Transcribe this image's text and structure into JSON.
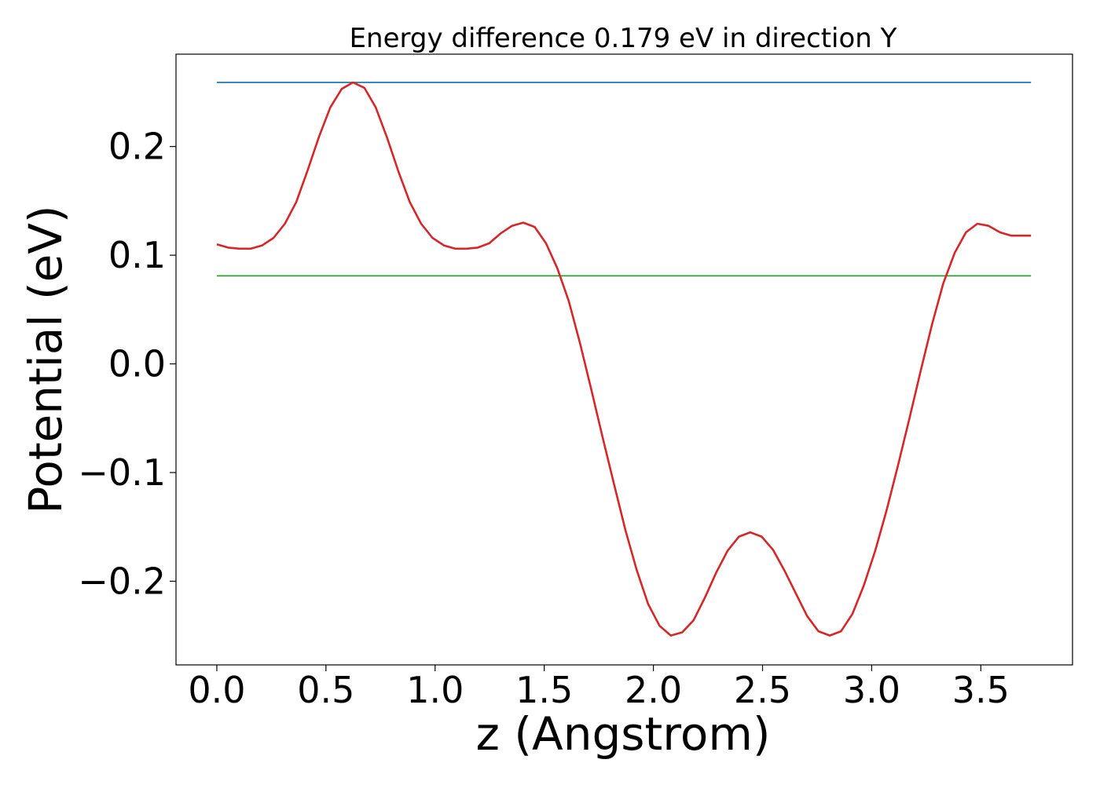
{
  "chart_data": {
    "type": "line",
    "title": "Energy difference 0.179 eV in direction Y",
    "xlabel": "z (Angstrom)",
    "ylabel": "Potential (eV)",
    "xlim": [
      -0.187,
      3.92
    ],
    "ylim": [
      -0.277,
      0.285
    ],
    "x_ticks": [
      0.0,
      0.5,
      1.0,
      1.5,
      2.0,
      2.5,
      3.0,
      3.5
    ],
    "x_tick_labels": [
      "0.0",
      "0.5",
      "1.0",
      "1.5",
      "2.0",
      "2.5",
      "3.0",
      "3.5"
    ],
    "y_ticks": [
      -0.2,
      -0.1,
      0.0,
      0.1,
      0.2
    ],
    "y_tick_labels": [
      "−0.2",
      "−0.1",
      "0.0",
      "0.1",
      "0.2"
    ],
    "grid": false,
    "series": [
      {
        "color": "#1f77b4",
        "x": [
          0.0,
          3.73
        ],
        "y": [
          0.259,
          0.259
        ]
      },
      {
        "color": "#2ca02c",
        "x": [
          0.0,
          3.73
        ],
        "y": [
          0.081,
          0.081
        ]
      },
      {
        "color": "#d62728",
        "x": [
          0.0,
          0.052,
          0.104,
          0.156,
          0.208,
          0.26,
          0.312,
          0.364,
          0.416,
          0.468,
          0.52,
          0.572,
          0.624,
          0.676,
          0.728,
          0.78,
          0.832,
          0.884,
          0.936,
          0.988,
          1.04,
          1.092,
          1.144,
          1.196,
          1.248,
          1.3,
          1.352,
          1.404,
          1.456,
          1.508,
          1.56,
          1.612,
          1.664,
          1.716,
          1.768,
          1.82,
          1.872,
          1.924,
          1.976,
          2.028,
          2.08,
          2.132,
          2.184,
          2.236,
          2.288,
          2.34,
          2.392,
          2.444,
          2.496,
          2.548,
          2.6,
          2.652,
          2.704,
          2.756,
          2.808,
          2.86,
          2.912,
          2.964,
          3.016,
          3.068,
          3.12,
          3.172,
          3.224,
          3.276,
          3.328,
          3.38,
          3.432,
          3.484,
          3.536,
          3.588,
          3.64,
          3.692,
          3.73
        ],
        "y": [
          0.11,
          0.107,
          0.106,
          0.106,
          0.109,
          0.116,
          0.129,
          0.149,
          0.178,
          0.209,
          0.236,
          0.253,
          0.259,
          0.254,
          0.236,
          0.208,
          0.177,
          0.149,
          0.129,
          0.116,
          0.109,
          0.106,
          0.106,
          0.107,
          0.111,
          0.12,
          0.127,
          0.13,
          0.126,
          0.111,
          0.088,
          0.058,
          0.019,
          -0.024,
          -0.068,
          -0.111,
          -0.153,
          -0.19,
          -0.221,
          -0.241,
          -0.25,
          -0.247,
          -0.236,
          -0.215,
          -0.192,
          -0.172,
          -0.159,
          -0.155,
          -0.159,
          -0.171,
          -0.19,
          -0.211,
          -0.232,
          -0.246,
          -0.25,
          -0.246,
          -0.23,
          -0.204,
          -0.172,
          -0.135,
          -0.094,
          -0.051,
          -0.007,
          0.036,
          0.074,
          0.102,
          0.121,
          0.129,
          0.127,
          0.121,
          0.118,
          0.118,
          0.118
        ]
      }
    ]
  }
}
